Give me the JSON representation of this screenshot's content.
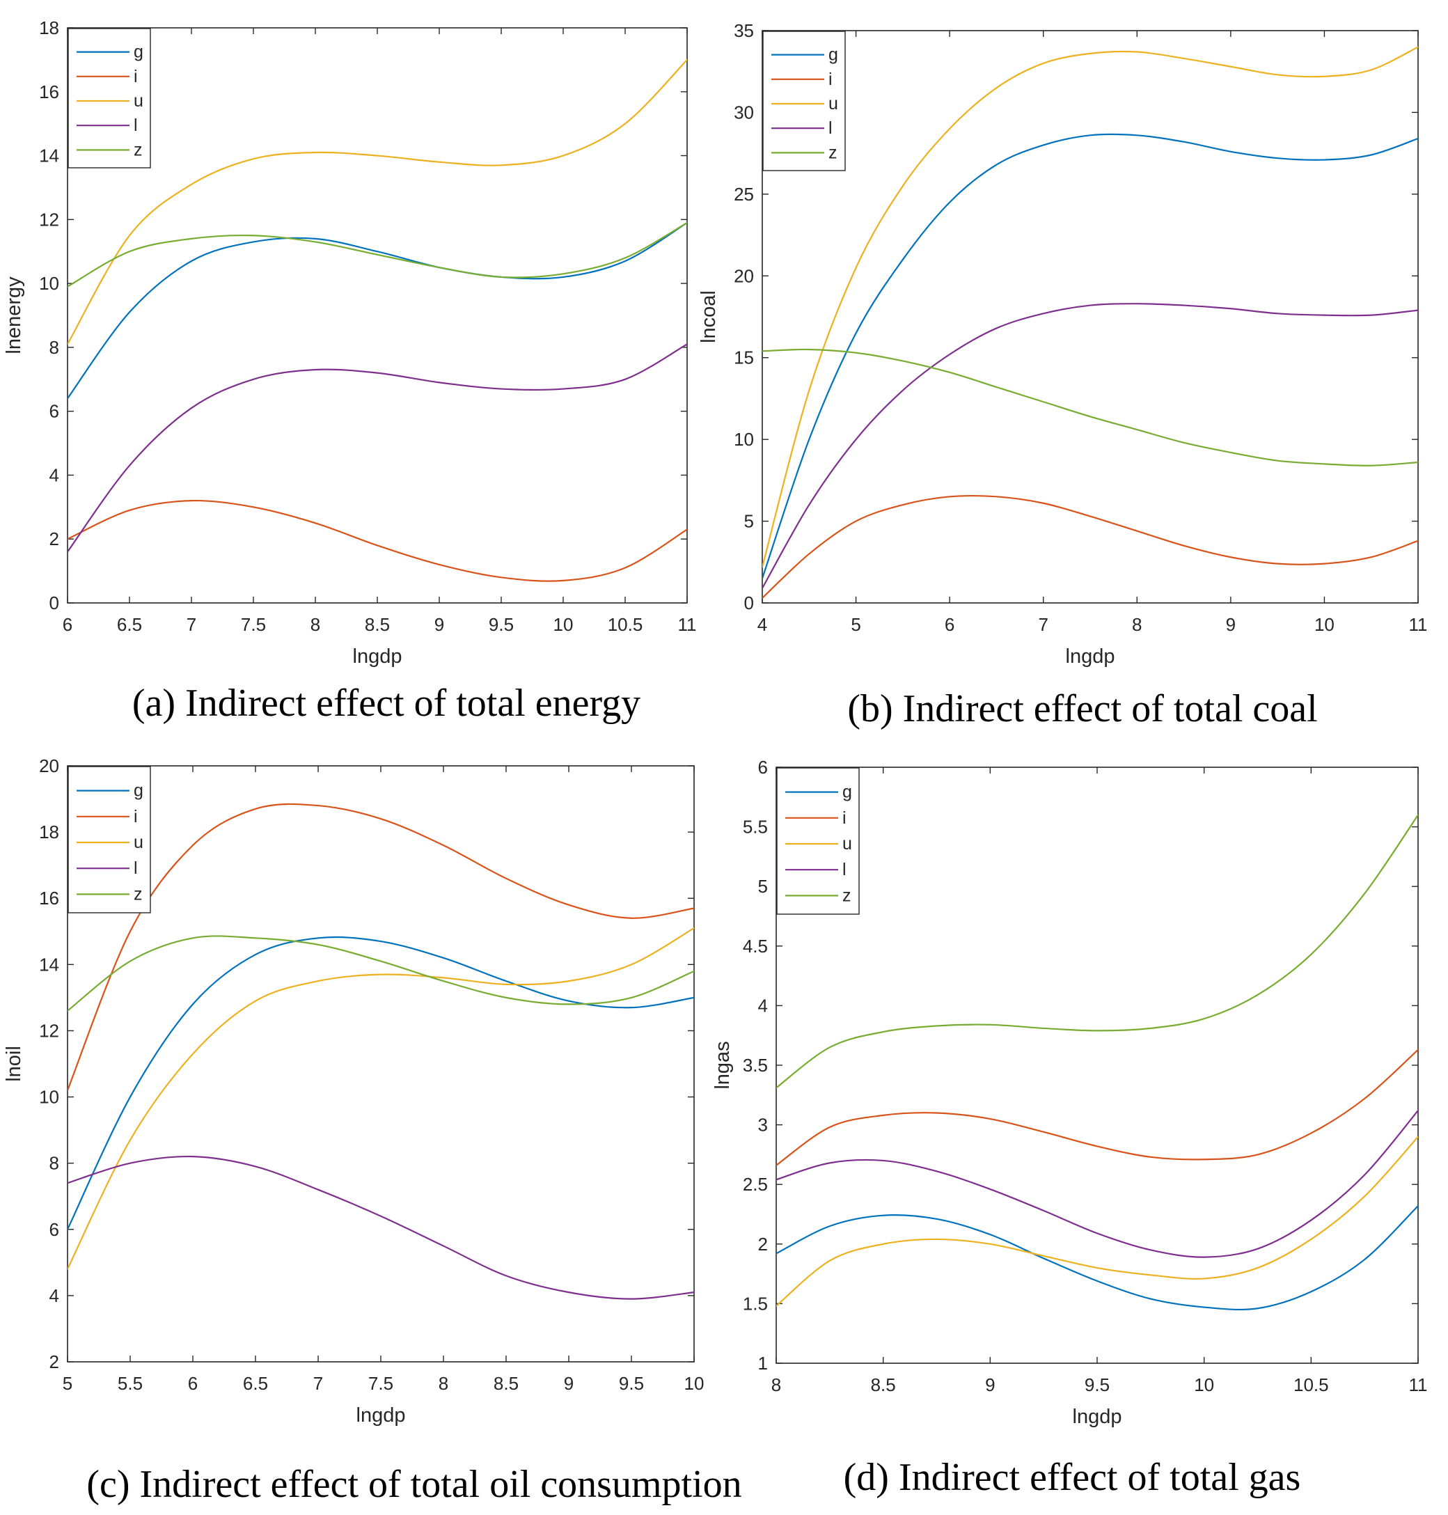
{
  "figure": {
    "captions": [
      "(a) Indirect effect of total energy",
      "(b) Indirect effect of total coal",
      "(c) Indirect effect of total oil consumption",
      "(d) Indirect effect of total gas"
    ]
  },
  "colors": {
    "g": "#0072BD",
    "i": "#D95319",
    "u": "#EDB120",
    "l": "#7E2F8E",
    "z": "#77AC30",
    "axis": "#262626"
  },
  "chart_data": [
    {
      "id": "a",
      "type": "line",
      "title": "(a) Indirect effect of total energy",
      "xlabel": "lngdp",
      "ylabel": "lnenergy",
      "xlim": [
        6,
        11
      ],
      "ylim": [
        0,
        18
      ],
      "xticks": [
        "6",
        "6.5",
        "7",
        "7.5",
        "8",
        "8.5",
        "9",
        "9.5",
        "10",
        "10.5",
        "11"
      ],
      "yticks": [
        "0",
        "2",
        "4",
        "6",
        "8",
        "10",
        "12",
        "14",
        "16",
        "18"
      ],
      "legend": [
        "g",
        "i",
        "u",
        "l",
        "z"
      ],
      "legend_position": "top-left",
      "x": [
        6,
        6.5,
        7,
        7.5,
        8,
        8.5,
        9,
        9.5,
        10,
        10.5,
        11
      ],
      "series": [
        {
          "name": "g",
          "values": [
            6.4,
            9.1,
            10.7,
            11.3,
            11.4,
            11.0,
            10.5,
            10.2,
            10.2,
            10.7,
            11.9
          ]
        },
        {
          "name": "i",
          "values": [
            2.0,
            2.9,
            3.2,
            3.0,
            2.5,
            1.8,
            1.2,
            0.8,
            0.7,
            1.1,
            2.3
          ]
        },
        {
          "name": "u",
          "values": [
            8.1,
            11.5,
            13.1,
            13.9,
            14.1,
            14.0,
            13.8,
            13.7,
            14.0,
            15.0,
            17.0
          ]
        },
        {
          "name": "l",
          "values": [
            1.6,
            4.3,
            6.1,
            7.0,
            7.3,
            7.2,
            6.9,
            6.7,
            6.7,
            7.0,
            8.1
          ]
        },
        {
          "name": "z",
          "values": [
            9.9,
            11.0,
            11.4,
            11.5,
            11.3,
            10.9,
            10.5,
            10.2,
            10.3,
            10.8,
            11.9
          ]
        }
      ]
    },
    {
      "id": "b",
      "type": "line",
      "title": "(b) Indirect effect of total coal",
      "xlabel": "lngdp",
      "ylabel": "lncoal",
      "xlim": [
        4,
        11
      ],
      "ylim": [
        0,
        35
      ],
      "xticks": [
        "4",
        "5",
        "6",
        "7",
        "8",
        "9",
        "10",
        "11"
      ],
      "yticks": [
        "0",
        "5",
        "10",
        "15",
        "20",
        "25",
        "30",
        "35"
      ],
      "legend": [
        "g",
        "i",
        "u",
        "l",
        "z"
      ],
      "legend_position": "top-left",
      "x": [
        4,
        4.5,
        5,
        5.5,
        6,
        6.5,
        7,
        7.5,
        8,
        8.5,
        9,
        9.5,
        10,
        10.5,
        11
      ],
      "series": [
        {
          "name": "g",
          "values": [
            1.5,
            10.0,
            16.5,
            21.0,
            24.5,
            26.8,
            28.0,
            28.6,
            28.6,
            28.2,
            27.6,
            27.2,
            27.1,
            27.4,
            28.4
          ]
        },
        {
          "name": "i",
          "values": [
            0.3,
            3.0,
            5.0,
            6.0,
            6.5,
            6.5,
            6.1,
            5.3,
            4.4,
            3.5,
            2.8,
            2.4,
            2.4,
            2.8,
            3.8
          ]
        },
        {
          "name": "u",
          "values": [
            2.2,
            13.0,
            20.5,
            25.5,
            29.0,
            31.5,
            33.0,
            33.6,
            33.7,
            33.3,
            32.8,
            32.3,
            32.2,
            32.6,
            34.0
          ]
        },
        {
          "name": "l",
          "values": [
            0.9,
            6.0,
            10.0,
            13.0,
            15.2,
            16.8,
            17.7,
            18.2,
            18.3,
            18.2,
            18.0,
            17.7,
            17.6,
            17.6,
            17.9
          ]
        },
        {
          "name": "z",
          "values": [
            15.4,
            15.5,
            15.3,
            14.8,
            14.1,
            13.2,
            12.3,
            11.4,
            10.6,
            9.8,
            9.2,
            8.7,
            8.5,
            8.4,
            8.6
          ]
        }
      ]
    },
    {
      "id": "c",
      "type": "line",
      "title": "(c) Indirect effect of total oil consumption",
      "xlabel": "lngdp",
      "ylabel": "lnoil",
      "xlim": [
        5,
        10
      ],
      "ylim": [
        2,
        20
      ],
      "xticks": [
        "5",
        "5.5",
        "6",
        "6.5",
        "7",
        "7.5",
        "8",
        "8.5",
        "9",
        "9.5",
        "10"
      ],
      "yticks": [
        "2",
        "4",
        "6",
        "8",
        "10",
        "12",
        "14",
        "16",
        "18",
        "20"
      ],
      "legend": [
        "g",
        "i",
        "u",
        "l",
        "z"
      ],
      "legend_position": "top-left",
      "x": [
        5,
        5.5,
        6,
        6.5,
        7,
        7.5,
        8,
        8.5,
        9,
        9.5,
        10
      ],
      "series": [
        {
          "name": "g",
          "values": [
            6.0,
            10.0,
            12.8,
            14.3,
            14.8,
            14.7,
            14.2,
            13.5,
            12.9,
            12.7,
            13.0
          ]
        },
        {
          "name": "i",
          "values": [
            10.2,
            15.0,
            17.6,
            18.7,
            18.8,
            18.4,
            17.6,
            16.6,
            15.8,
            15.4,
            15.7
          ]
        },
        {
          "name": "u",
          "values": [
            4.8,
            8.7,
            11.3,
            12.9,
            13.5,
            13.7,
            13.6,
            13.4,
            13.5,
            14.0,
            15.1
          ]
        },
        {
          "name": "l",
          "values": [
            7.4,
            8.0,
            8.2,
            7.9,
            7.2,
            6.4,
            5.5,
            4.6,
            4.1,
            3.9,
            4.1
          ]
        },
        {
          "name": "z",
          "values": [
            12.6,
            14.1,
            14.8,
            14.8,
            14.6,
            14.1,
            13.5,
            13.0,
            12.8,
            13.0,
            13.8
          ]
        }
      ]
    },
    {
      "id": "d",
      "type": "line",
      "title": "(d) Indirect effect of total gas",
      "xlabel": "lngdp",
      "ylabel": "lngas",
      "xlim": [
        8,
        11
      ],
      "ylim": [
        1,
        6
      ],
      "xticks": [
        "8",
        "8.5",
        "9",
        "9.5",
        "10",
        "10.5",
        "11"
      ],
      "yticks": [
        "1",
        "1.5",
        "2",
        "2.5",
        "3",
        "3.5",
        "4",
        "4.5",
        "5",
        "5.5",
        "6"
      ],
      "legend": [
        "g",
        "i",
        "u",
        "l",
        "z"
      ],
      "legend_position": "top-left",
      "x": [
        8,
        8.25,
        8.5,
        8.75,
        9,
        9.25,
        9.5,
        9.75,
        10,
        10.25,
        10.5,
        10.75,
        11
      ],
      "series": [
        {
          "name": "g",
          "values": [
            1.92,
            2.15,
            2.24,
            2.21,
            2.08,
            1.88,
            1.69,
            1.54,
            1.47,
            1.46,
            1.6,
            1.87,
            2.32
          ]
        },
        {
          "name": "i",
          "values": [
            2.66,
            2.98,
            3.08,
            3.1,
            3.05,
            2.94,
            2.82,
            2.73,
            2.71,
            2.75,
            2.93,
            3.22,
            3.63
          ]
        },
        {
          "name": "u",
          "values": [
            1.48,
            1.86,
            2.0,
            2.04,
            2.0,
            1.9,
            1.8,
            1.74,
            1.71,
            1.8,
            2.04,
            2.4,
            2.9
          ]
        },
        {
          "name": "l",
          "values": [
            2.54,
            2.68,
            2.7,
            2.61,
            2.46,
            2.28,
            2.09,
            1.95,
            1.89,
            1.96,
            2.2,
            2.58,
            3.12
          ]
        },
        {
          "name": "z",
          "values": [
            3.31,
            3.65,
            3.78,
            3.83,
            3.84,
            3.81,
            3.79,
            3.81,
            3.89,
            4.09,
            4.43,
            4.94,
            5.6
          ]
        }
      ]
    }
  ]
}
